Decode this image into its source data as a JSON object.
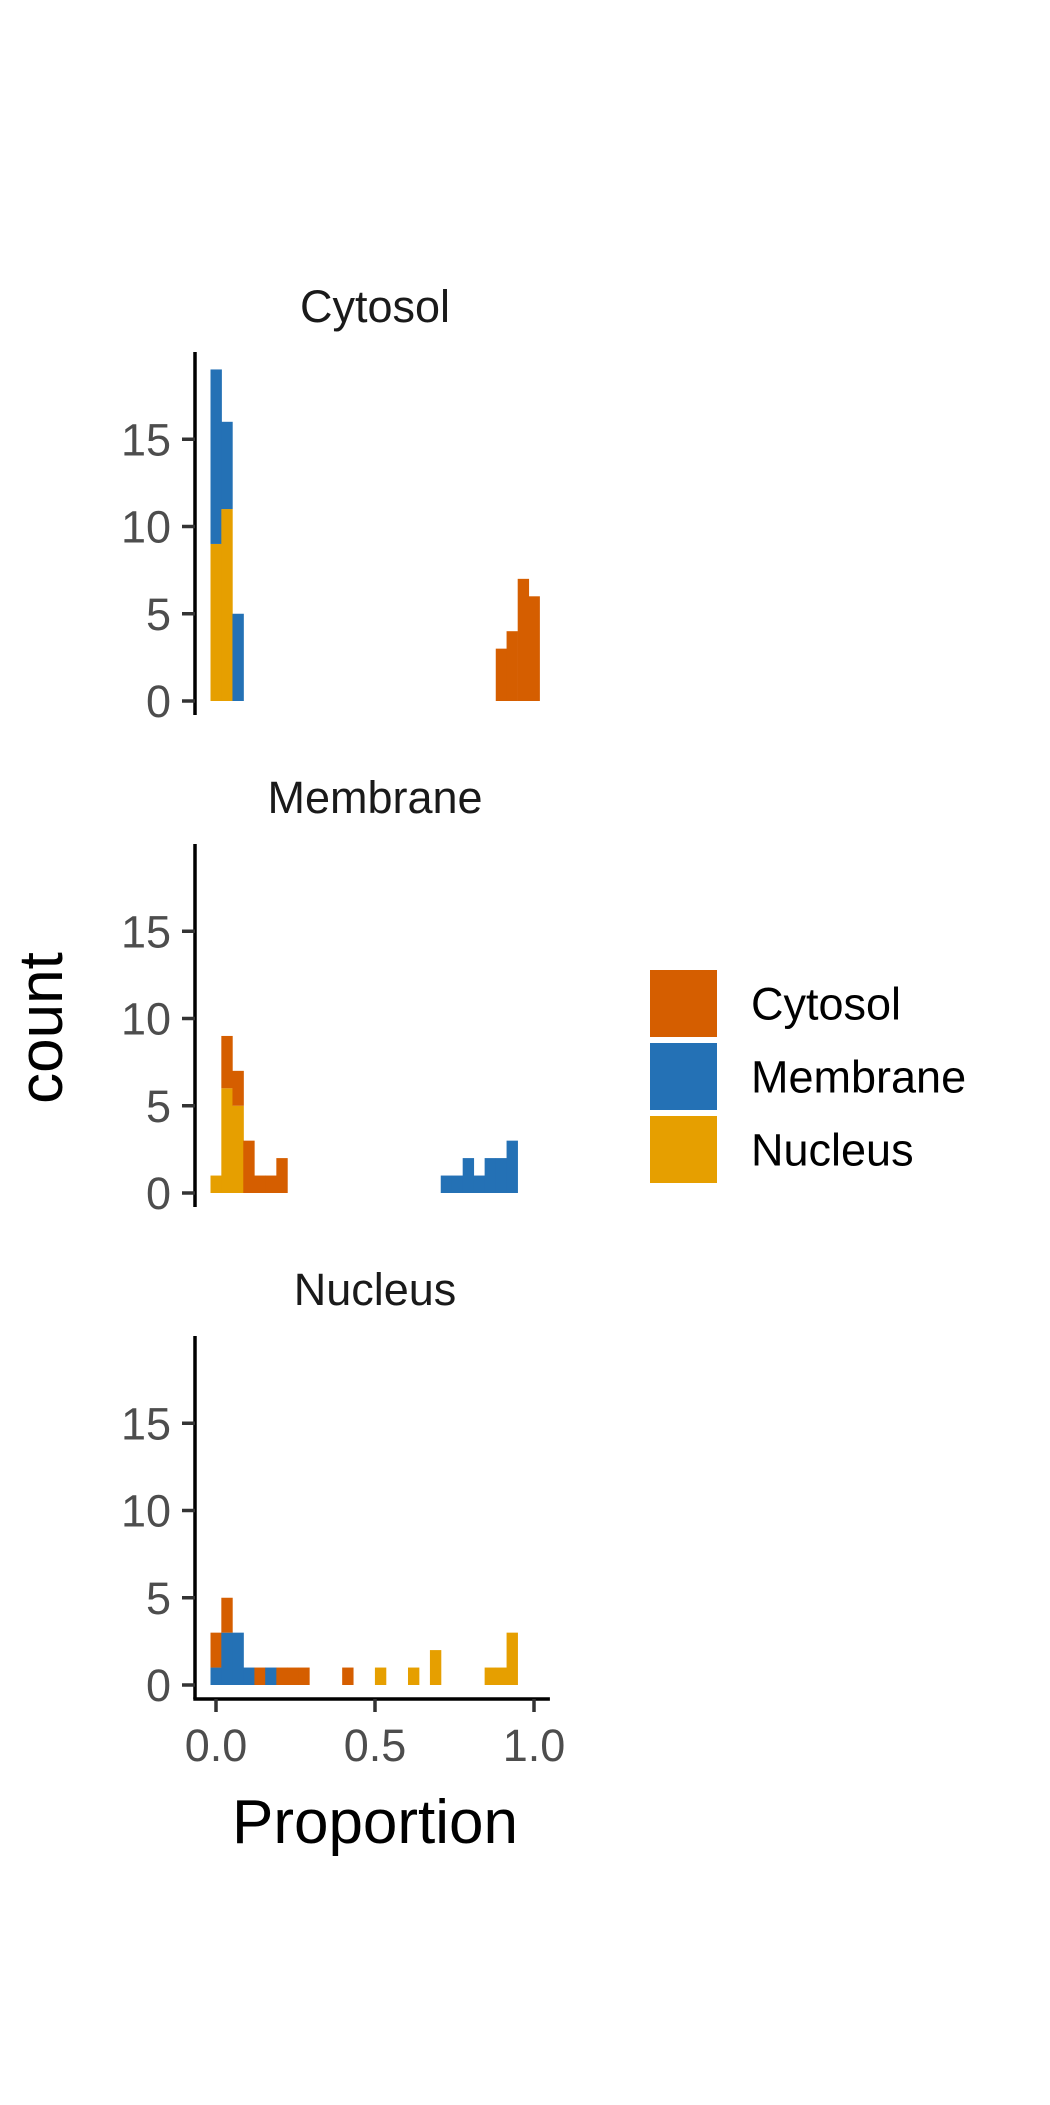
{
  "chart_data": {
    "type": "histogram",
    "xlabel": "Proportion",
    "ylabel": "count",
    "xlim": [
      -0.04,
      1.05
    ],
    "ylim": [
      0,
      20
    ],
    "x_ticks": [
      0.0,
      0.5,
      1.0
    ],
    "x_tick_labels": [
      "0.0",
      "0.5",
      "1.0"
    ],
    "y_ticks": [
      0,
      5,
      10,
      15
    ],
    "y_tick_labels": [
      "0",
      "5",
      "10",
      "15"
    ],
    "bin_width": 0.0345,
    "position": "stacked",
    "grid": false,
    "legend_position": "right",
    "series_order": [
      "Cytosol",
      "Membrane",
      "Nucleus"
    ],
    "stack_order_bottom_to_top": [
      "Nucleus",
      "Membrane",
      "Cytosol"
    ],
    "colors": {
      "Cytosol": "#D55E00",
      "Membrane": "#2471B5",
      "Nucleus": "#E69F00"
    },
    "legend": {
      "items": [
        {
          "name": "Cytosol",
          "color": "#D55E00"
        },
        {
          "name": "Membrane",
          "color": "#2471B5"
        },
        {
          "name": "Nucleus",
          "color": "#E69F00"
        }
      ]
    },
    "facets": [
      {
        "title": "Cytosol",
        "bins": [
          {
            "x": 0.0,
            "Nucleus": 9,
            "Membrane": 10,
            "Cytosol": 0
          },
          {
            "x": 0.034,
            "Nucleus": 11,
            "Membrane": 5,
            "Cytosol": 0
          },
          {
            "x": 0.069,
            "Nucleus": 0,
            "Membrane": 5,
            "Cytosol": 0
          },
          {
            "x": 0.897,
            "Nucleus": 0,
            "Membrane": 0,
            "Cytosol": 3
          },
          {
            "x": 0.931,
            "Nucleus": 0,
            "Membrane": 0,
            "Cytosol": 4
          },
          {
            "x": 0.966,
            "Nucleus": 0,
            "Membrane": 0,
            "Cytosol": 7
          },
          {
            "x": 1.0,
            "Nucleus": 0,
            "Membrane": 0,
            "Cytosol": 6
          }
        ]
      },
      {
        "title": "Membrane",
        "bins": [
          {
            "x": 0.0,
            "Nucleus": 1,
            "Membrane": 0,
            "Cytosol": 0
          },
          {
            "x": 0.034,
            "Nucleus": 6,
            "Membrane": 0,
            "Cytosol": 3
          },
          {
            "x": 0.069,
            "Nucleus": 5,
            "Membrane": 0,
            "Cytosol": 2
          },
          {
            "x": 0.103,
            "Nucleus": 0,
            "Membrane": 0,
            "Cytosol": 3
          },
          {
            "x": 0.138,
            "Nucleus": 0,
            "Membrane": 0,
            "Cytosol": 1
          },
          {
            "x": 0.172,
            "Nucleus": 0,
            "Membrane": 0,
            "Cytosol": 1
          },
          {
            "x": 0.207,
            "Nucleus": 0,
            "Membrane": 0,
            "Cytosol": 2
          },
          {
            "x": 0.724,
            "Nucleus": 0,
            "Membrane": 1,
            "Cytosol": 0
          },
          {
            "x": 0.759,
            "Nucleus": 0,
            "Membrane": 1,
            "Cytosol": 0
          },
          {
            "x": 0.793,
            "Nucleus": 0,
            "Membrane": 2,
            "Cytosol": 0
          },
          {
            "x": 0.828,
            "Nucleus": 0,
            "Membrane": 1,
            "Cytosol": 0
          },
          {
            "x": 0.862,
            "Nucleus": 0,
            "Membrane": 2,
            "Cytosol": 0
          },
          {
            "x": 0.897,
            "Nucleus": 0,
            "Membrane": 2,
            "Cytosol": 0
          },
          {
            "x": 0.931,
            "Nucleus": 0,
            "Membrane": 3,
            "Cytosol": 0
          }
        ]
      },
      {
        "title": "Nucleus",
        "bins": [
          {
            "x": 0.0,
            "Nucleus": 0,
            "Membrane": 1,
            "Cytosol": 2
          },
          {
            "x": 0.034,
            "Nucleus": 0,
            "Membrane": 3,
            "Cytosol": 2
          },
          {
            "x": 0.069,
            "Nucleus": 0,
            "Membrane": 3,
            "Cytosol": 0
          },
          {
            "x": 0.103,
            "Nucleus": 0,
            "Membrane": 1,
            "Cytosol": 0
          },
          {
            "x": 0.138,
            "Nucleus": 0,
            "Membrane": 0,
            "Cytosol": 1
          },
          {
            "x": 0.172,
            "Nucleus": 0,
            "Membrane": 1,
            "Cytosol": 0
          },
          {
            "x": 0.207,
            "Nucleus": 0,
            "Membrane": 0,
            "Cytosol": 1
          },
          {
            "x": 0.241,
            "Nucleus": 0,
            "Membrane": 0,
            "Cytosol": 1
          },
          {
            "x": 0.276,
            "Nucleus": 0,
            "Membrane": 0,
            "Cytosol": 1
          },
          {
            "x": 0.414,
            "Nucleus": 0,
            "Membrane": 0,
            "Cytosol": 1
          },
          {
            "x": 0.517,
            "Nucleus": 1,
            "Membrane": 0,
            "Cytosol": 0
          },
          {
            "x": 0.621,
            "Nucleus": 1,
            "Membrane": 0,
            "Cytosol": 0
          },
          {
            "x": 0.69,
            "Nucleus": 2,
            "Membrane": 0,
            "Cytosol": 0
          },
          {
            "x": 0.862,
            "Nucleus": 1,
            "Membrane": 0,
            "Cytosol": 0
          },
          {
            "x": 0.897,
            "Nucleus": 1,
            "Membrane": 0,
            "Cytosol": 0
          },
          {
            "x": 0.931,
            "Nucleus": 3,
            "Membrane": 0,
            "Cytosol": 0
          }
        ]
      }
    ]
  }
}
